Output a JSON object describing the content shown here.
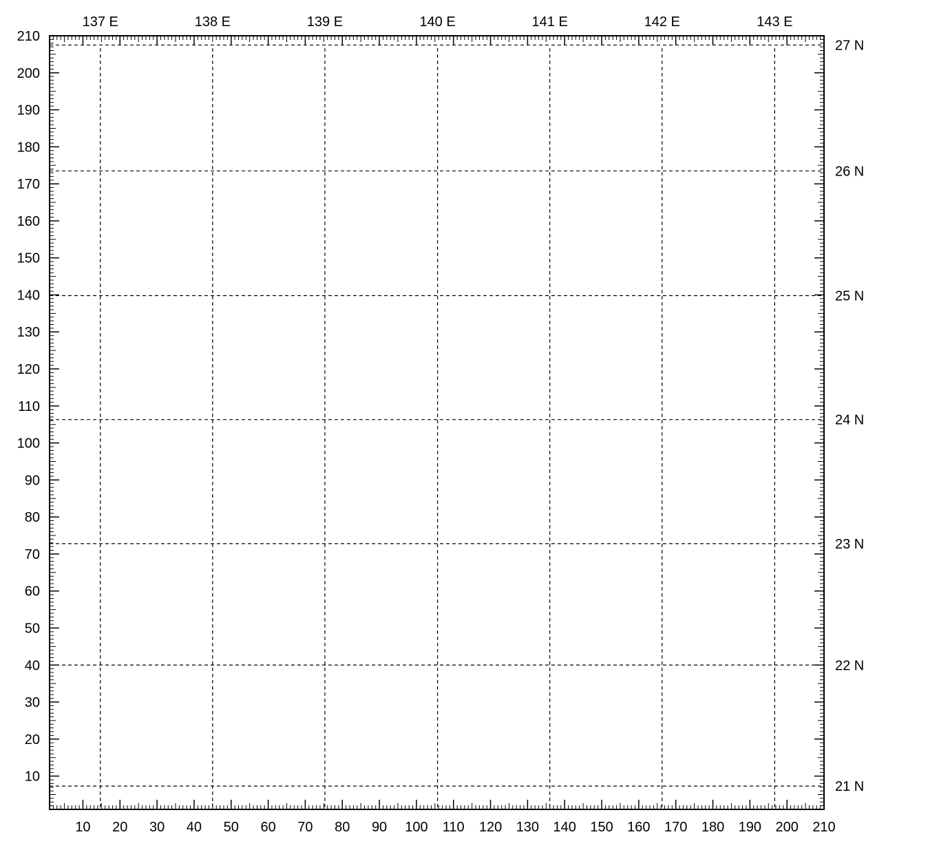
{
  "chart_data": {
    "type": "map-grid",
    "title": "",
    "xlabel": "",
    "ylabel": "",
    "xlim": [
      1,
      210
    ],
    "ylim": [
      1,
      210
    ],
    "grid": true,
    "x_major_ticks": [
      10,
      20,
      30,
      40,
      50,
      60,
      70,
      80,
      90,
      100,
      110,
      120,
      130,
      140,
      150,
      160,
      170,
      180,
      190,
      200,
      210
    ],
    "y_major_ticks": [
      10,
      20,
      30,
      40,
      50,
      60,
      70,
      80,
      90,
      100,
      110,
      120,
      130,
      140,
      150,
      160,
      170,
      180,
      190,
      200,
      210
    ],
    "meridians": [
      {
        "label": "137 E",
        "x": 14.7
      },
      {
        "label": "138 E",
        "x": 45.0
      },
      {
        "label": "139 E",
        "x": 75.3
      },
      {
        "label": "140 E",
        "x": 105.7
      },
      {
        "label": "141 E",
        "x": 136.0
      },
      {
        "label": "142 E",
        "x": 166.3
      },
      {
        "label": "143 E",
        "x": 196.7
      }
    ],
    "parallels": [
      {
        "label": "21 N",
        "y": 7.3
      },
      {
        "label": "22 N",
        "y": 40.0
      },
      {
        "label": "23 N",
        "y": 72.8
      },
      {
        "label": "24 N",
        "y": 106.3
      },
      {
        "label": "25 N",
        "y": 139.8
      },
      {
        "label": "26 N",
        "y": 173.5
      },
      {
        "label": "27 N",
        "y": 207.5
      }
    ]
  }
}
